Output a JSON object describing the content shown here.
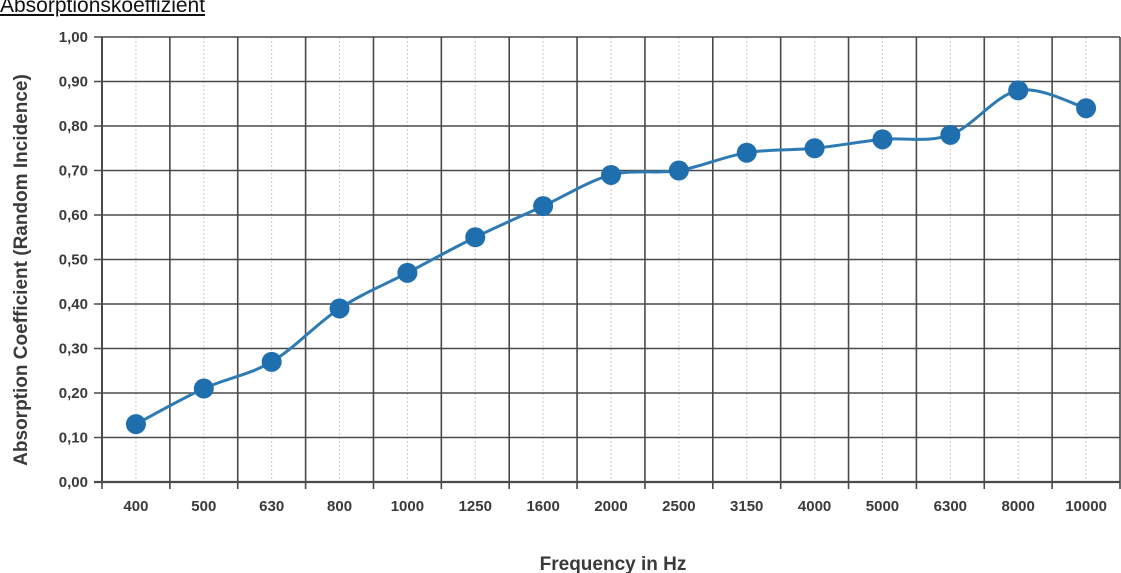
{
  "caption": "Absorptionskoeffizient",
  "chart_data": {
    "type": "line",
    "title": "",
    "xlabel": "Frequency in Hz",
    "ylabel": "Absorption Coefficient (Random Incidence)",
    "categories": [
      "400",
      "500",
      "630",
      "800",
      "1000",
      "1250",
      "1600",
      "2000",
      "2500",
      "3150",
      "4000",
      "5000",
      "6300",
      "8000",
      "10000"
    ],
    "values": [
      0.13,
      0.21,
      0.27,
      0.39,
      0.47,
      0.55,
      0.62,
      0.69,
      0.7,
      0.74,
      0.75,
      0.77,
      0.78,
      0.88,
      0.84
    ],
    "ylim": [
      0,
      1.0
    ],
    "yticks": [
      "0,00",
      "0,10",
      "0,20",
      "0,30",
      "0,40",
      "0,50",
      "0,60",
      "0,70",
      "0,80",
      "0,90",
      "1,00"
    ],
    "grid": true,
    "legend": "none",
    "colors": {
      "line": "#2e7bb4",
      "marker": "#1f6fae",
      "grid_major": "#4a4a4a",
      "grid_minor": "#c8c8c8"
    }
  }
}
